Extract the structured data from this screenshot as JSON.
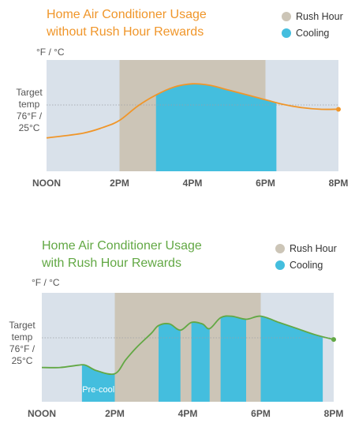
{
  "legend": {
    "rush_hour": "Rush Hour",
    "cooling": "Cooling"
  },
  "colors": {
    "plot_bg": "#d9e1ea",
    "rush_hour": "#ccc5b7",
    "cooling": "#44bede",
    "line_without": "#f0962a",
    "line_with": "#62a844",
    "title_without": "#f0962a",
    "title_with": "#62a844"
  },
  "chart_data": [
    {
      "type": "area",
      "title": [
        "Home Air Conditioner Usage",
        "without Rush Hour Rewards"
      ],
      "ylabel": "°F / °C",
      "target_label": [
        "Target",
        "temp",
        "76°F /",
        "25°C"
      ],
      "x_ticks": [
        "NOON",
        "2PM",
        "4PM",
        "6PM",
        "8PM"
      ],
      "x_range": [
        12,
        20
      ],
      "rush_hour": [
        14,
        18
      ],
      "cooling_periods": [
        [
          15,
          18.3
        ]
      ],
      "series": [
        {
          "x": [
            12,
            13,
            13.6,
            14,
            14.5,
            15,
            15.5,
            16,
            16.5,
            17,
            17.5,
            18,
            18.5,
            19,
            19.5,
            20
          ],
          "y": [
            74.6,
            74.9,
            75.3,
            75.7,
            76.6,
            77.3,
            77.8,
            78.0,
            77.9,
            77.6,
            77.3,
            77.0,
            76.7,
            76.5,
            76.4,
            76.4
          ]
        }
      ]
    },
    {
      "type": "area",
      "title": [
        "Home Air Conditioner Usage",
        "with Rush Hour Rewards"
      ],
      "ylabel": "°F / °C",
      "target_label": [
        "Target",
        "temp",
        "76°F /",
        "25°C"
      ],
      "x_ticks": [
        "NOON",
        "2PM",
        "4PM",
        "6PM",
        "8PM"
      ],
      "x_range": [
        12,
        20
      ],
      "rush_hour": [
        14,
        18
      ],
      "cooling_periods": [
        [
          13.1,
          14
        ],
        [
          15.2,
          15.8
        ],
        [
          16.1,
          16.6
        ],
        [
          16.9,
          17.6
        ],
        [
          18,
          19.7
        ]
      ],
      "precool_label": "Pre-cool",
      "series": [
        {
          "x": [
            12,
            12.5,
            13,
            13.2,
            13.5,
            14,
            14.3,
            14.6,
            15,
            15.2,
            15.5,
            15.8,
            16.1,
            16.4,
            16.6,
            16.9,
            17.2,
            17.6,
            18,
            18.5,
            19,
            19.5,
            20
          ],
          "y": [
            74.7,
            74.7,
            74.85,
            74.85,
            74.5,
            74.3,
            75.2,
            76.0,
            76.9,
            77.4,
            77.5,
            77.1,
            77.6,
            77.5,
            77.2,
            77.9,
            78.0,
            77.8,
            78.0,
            77.6,
            77.2,
            76.8,
            76.5
          ]
        }
      ]
    }
  ]
}
